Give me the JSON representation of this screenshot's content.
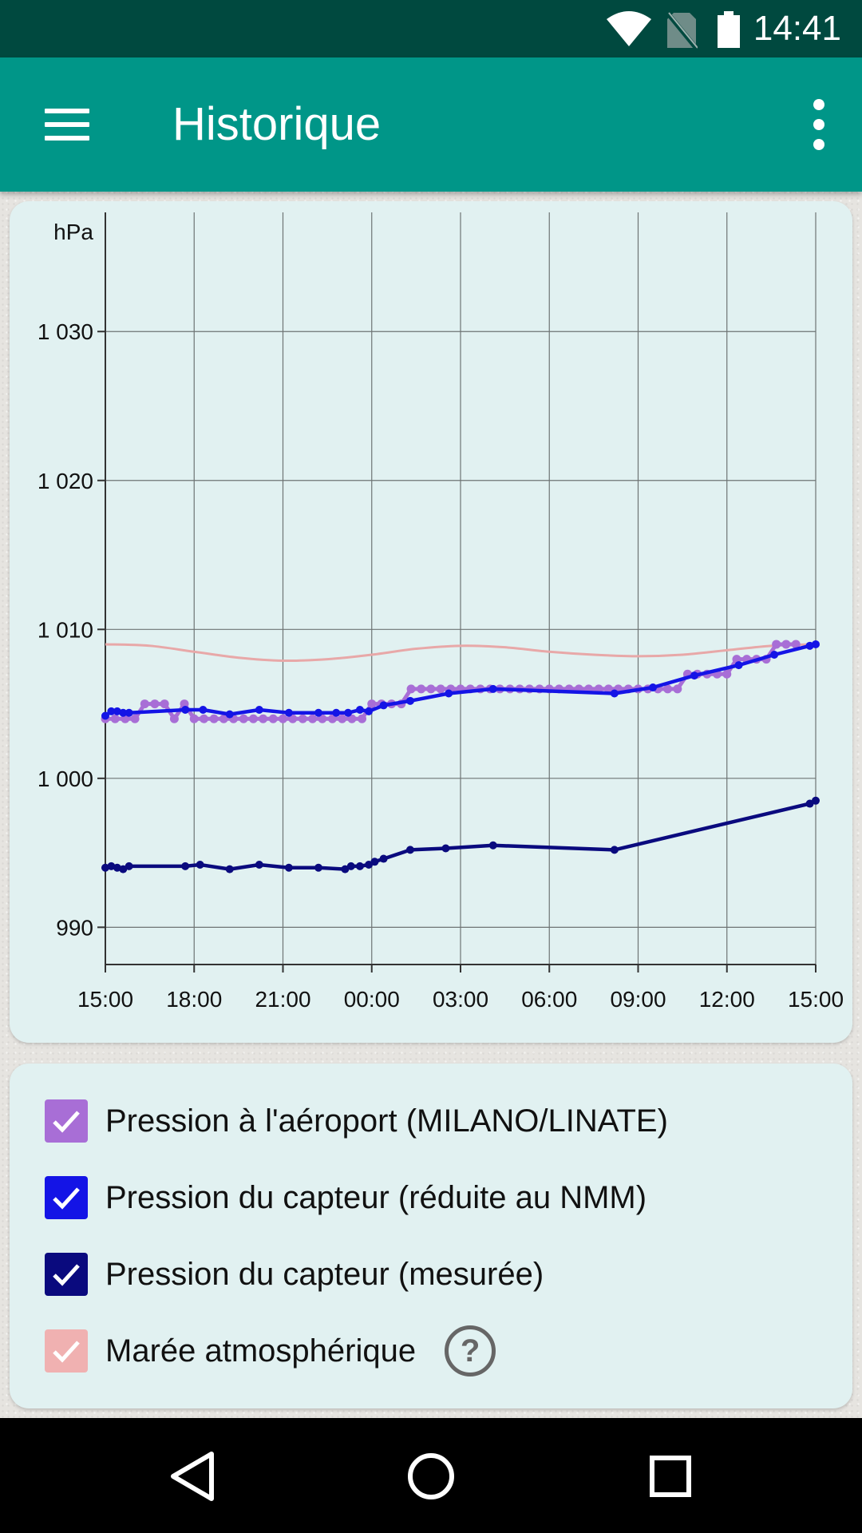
{
  "status_bar": {
    "time": "14:41",
    "icons": [
      "wifi-icon",
      "no-sim-icon",
      "battery-icon"
    ]
  },
  "app_bar": {
    "title": "Historique",
    "menu_icon": "hamburger-menu-icon",
    "overflow_icon": "more-vert-icon"
  },
  "chart_data": {
    "type": "line",
    "ylabel": "hPa",
    "ylim": [
      987.5,
      1038
    ],
    "yticks": [
      {
        "value": 1030,
        "label": "1 030"
      },
      {
        "value": 1020,
        "label": "1 020"
      },
      {
        "value": 1010,
        "label": "1 010"
      },
      {
        "value": 1000,
        "label": "1 000"
      },
      {
        "value": 990,
        "label": "990"
      }
    ],
    "x_unit": "hours since first tick",
    "xlim": [
      0,
      24
    ],
    "xticks": [
      {
        "value": 0,
        "label": "15:00"
      },
      {
        "value": 3,
        "label": "18:00"
      },
      {
        "value": 6,
        "label": "21:00"
      },
      {
        "value": 9,
        "label": "00:00"
      },
      {
        "value": 12,
        "label": "03:00"
      },
      {
        "value": 15,
        "label": "06:00"
      },
      {
        "value": 18,
        "label": "09:00"
      },
      {
        "value": 21,
        "label": "12:00"
      },
      {
        "value": 24,
        "label": "15:00"
      }
    ],
    "grid": true,
    "series": [
      {
        "name": "Marée atmosphérique",
        "color": "#e8a8a8",
        "style": "smooth",
        "x": [
          0,
          1.5,
          3,
          4.5,
          6,
          7.5,
          9,
          10.5,
          12,
          13.5,
          15,
          16.5,
          18,
          19.5,
          21,
          22.5,
          24
        ],
        "y": [
          1009.0,
          1008.9,
          1008.5,
          1008.1,
          1007.9,
          1008.0,
          1008.3,
          1008.7,
          1008.9,
          1008.8,
          1008.5,
          1008.3,
          1008.2,
          1008.3,
          1008.6,
          1008.9,
          1009.0
        ]
      },
      {
        "name": "Pression à l'aéroport (MILANO/LINATE)",
        "color": "#a86ed6",
        "style": "line",
        "x": [
          0,
          0.33,
          0.67,
          1.0,
          1.33,
          1.67,
          2.0,
          2.33,
          2.67,
          3.0,
          3.33,
          3.67,
          4.0,
          4.33,
          4.67,
          5.0,
          5.33,
          5.67,
          6.0,
          6.33,
          6.67,
          7.0,
          7.33,
          7.67,
          8.0,
          8.33,
          8.67,
          9.0,
          9.33,
          9.67,
          10.0,
          10.33,
          10.67,
          11.0,
          11.33,
          11.67,
          12.0,
          12.33,
          12.67,
          13.0,
          13.33,
          13.67,
          14.0,
          14.33,
          14.67,
          15.0,
          15.33,
          15.67,
          16.0,
          16.33,
          16.67,
          17.0,
          17.33,
          17.67,
          18.0,
          18.33,
          18.67,
          19.0,
          19.33,
          19.67,
          20.0,
          20.33,
          20.67,
          21.0,
          21.33,
          21.67,
          22.0,
          22.33,
          22.67,
          23.0,
          23.33
        ],
        "y": [
          1004,
          1004,
          1004,
          1004,
          1005,
          1005,
          1005,
          1004,
          1005,
          1004,
          1004,
          1004,
          1004,
          1004,
          1004,
          1004,
          1004,
          1004,
          1004,
          1004,
          1004,
          1004,
          1004,
          1004,
          1004,
          1004,
          1004,
          1005,
          1005,
          1005,
          1005,
          1006,
          1006,
          1006,
          1006,
          1006,
          1006,
          1006,
          1006,
          1006,
          1006,
          1006,
          1006,
          1006,
          1006,
          1006,
          1006,
          1006,
          1006,
          1006,
          1006,
          1006,
          1006,
          1006,
          1006,
          1006,
          1006,
          1006,
          1006,
          1007,
          1007,
          1007,
          1007,
          1007,
          1008,
          1008,
          1008,
          1008,
          1009,
          1009,
          1009
        ]
      },
      {
        "name": "Pression du capteur (réduite au NMM)",
        "color": "#1414e6",
        "style": "line",
        "x": [
          0,
          0.2,
          0.4,
          0.6,
          0.8,
          2.7,
          3.3,
          4.2,
          5.2,
          6.2,
          7.2,
          7.8,
          8.2,
          8.6,
          8.9,
          9.4,
          10.3,
          11.6,
          13.1,
          17.2,
          18.5,
          19.9,
          21.4,
          22.6,
          23.8,
          24.0
        ],
        "y": [
          1004.2,
          1004.5,
          1004.5,
          1004.4,
          1004.4,
          1004.6,
          1004.6,
          1004.3,
          1004.6,
          1004.4,
          1004.4,
          1004.4,
          1004.4,
          1004.6,
          1004.5,
          1004.9,
          1005.2,
          1005.7,
          1006.0,
          1005.7,
          1006.1,
          1006.9,
          1007.6,
          1008.3,
          1008.9,
          1009.0
        ]
      },
      {
        "name": "Pression du capteur (mesurée)",
        "color": "#0a0a7e",
        "style": "line",
        "x": [
          0,
          0.2,
          0.4,
          0.6,
          0.8,
          2.7,
          3.2,
          4.2,
          5.2,
          6.2,
          7.2,
          8.1,
          8.3,
          8.6,
          8.9,
          9.1,
          9.4,
          10.3,
          11.5,
          13.1,
          17.2,
          23.8,
          24.0
        ],
        "y": [
          994.0,
          994.1,
          994.0,
          993.9,
          994.1,
          994.1,
          994.2,
          993.9,
          994.2,
          994.0,
          994.0,
          993.9,
          994.1,
          994.1,
          994.2,
          994.4,
          994.6,
          995.2,
          995.3,
          995.5,
          995.2,
          998.3,
          998.5
        ]
      }
    ]
  },
  "legend": [
    {
      "label": "Pression à l'aéroport (MILANO/LINATE)",
      "color": "#a86ed6",
      "checked": true
    },
    {
      "label": "Pression du capteur (réduite au NMM)",
      "color": "#1414e6",
      "checked": true
    },
    {
      "label": "Pression du capteur (mesurée)",
      "color": "#0a0a7e",
      "checked": true
    },
    {
      "label": "Marée atmosphérique",
      "color": "#f0b1b1",
      "checked": true,
      "help_icon": "help-circle-icon",
      "help_glyph": "?"
    }
  ],
  "nav_bar": {
    "buttons": [
      "back-icon",
      "home-icon",
      "recents-icon"
    ]
  }
}
